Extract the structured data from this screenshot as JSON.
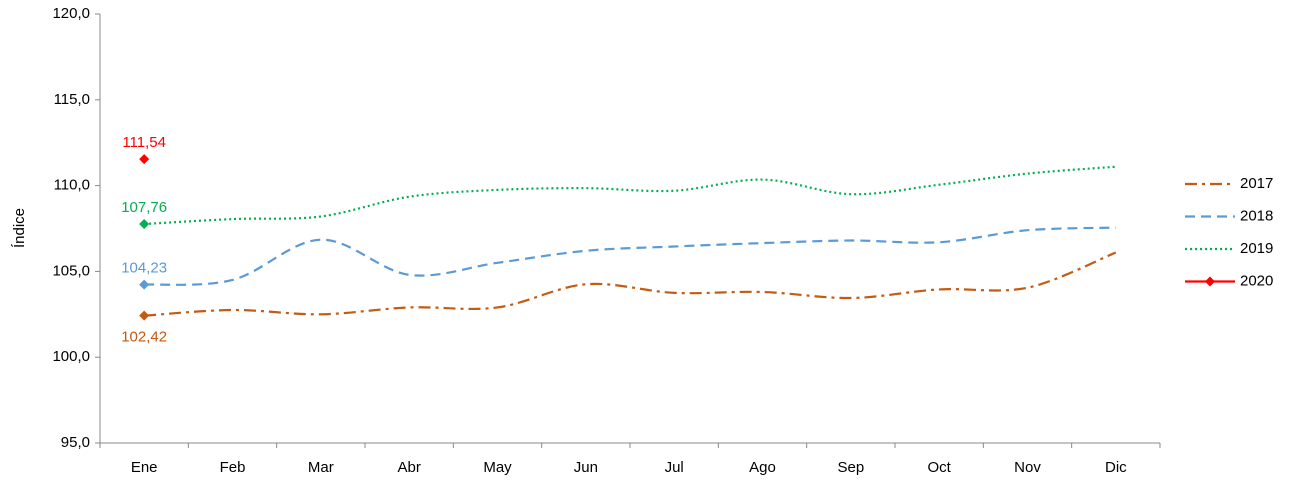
{
  "chart_data": {
    "type": "line",
    "y_label": "Índice",
    "categories": [
      "Ene",
      "Feb",
      "Mar",
      "Abr",
      "May",
      "Jun",
      "Jul",
      "Ago",
      "Sep",
      "Oct",
      "Nov",
      "Dic"
    ],
    "ylim": [
      95,
      120
    ],
    "yticks": [
      {
        "value": 95,
        "label": "95,0"
      },
      {
        "value": 100,
        "label": "100,0"
      },
      {
        "value": 105,
        "label": "105,0"
      },
      {
        "value": 110,
        "label": "110,0"
      },
      {
        "value": 115,
        "label": "115,0"
      },
      {
        "value": 120,
        "label": "120,0"
      }
    ],
    "grid": false,
    "legend": "right",
    "smooth": true,
    "series": [
      {
        "name": "2017",
        "color": "#c55a11",
        "dash": "dashdot",
        "values": [
          102.42,
          102.75,
          102.5,
          102.9,
          102.9,
          104.25,
          103.75,
          103.8,
          103.45,
          103.95,
          104.05,
          106.1
        ],
        "value_labels": [
          "102,42",
          null,
          null,
          null,
          null,
          null,
          null,
          null,
          null,
          null,
          null,
          null
        ]
      },
      {
        "name": "2018",
        "color": "#5b9bd5",
        "dash": "dash",
        "values": [
          104.23,
          104.5,
          106.85,
          104.8,
          105.5,
          106.2,
          106.45,
          106.65,
          106.8,
          106.7,
          107.4,
          107.55
        ],
        "value_labels": [
          "104,23",
          null,
          null,
          null,
          null,
          null,
          null,
          null,
          null,
          null,
          null,
          null
        ]
      },
      {
        "name": "2019",
        "color": "#00b050",
        "dash": "dot",
        "values": [
          107.76,
          108.05,
          108.2,
          109.35,
          109.75,
          109.85,
          109.7,
          110.35,
          109.5,
          110.05,
          110.7,
          111.1
        ],
        "value_labels": [
          "107,76",
          null,
          null,
          null,
          null,
          null,
          null,
          null,
          null,
          null,
          null,
          null
        ]
      },
      {
        "name": "2020",
        "color": "#ff0000",
        "dash": "solid",
        "values": [
          111.54,
          null,
          null,
          null,
          null,
          null,
          null,
          null,
          null,
          null,
          null,
          null
        ],
        "value_labels": [
          "111,54",
          null,
          null,
          null,
          null,
          null,
          null,
          null,
          null,
          null,
          null,
          null
        ]
      }
    ]
  }
}
